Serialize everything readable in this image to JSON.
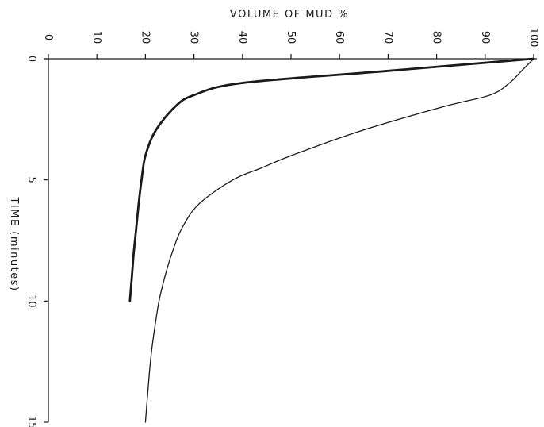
{
  "chart_data": {
    "type": "line",
    "title": "",
    "ylabel": "VOLUME OF MUD %",
    "xlabel": "TIME (minutes)",
    "xlim": [
      0,
      15
    ],
    "ylim": [
      0,
      100
    ],
    "x_ticks": [
      0,
      5,
      10,
      15
    ],
    "y_ticks": [
      0,
      10,
      20,
      30,
      40,
      50,
      60,
      70,
      80,
      90,
      100
    ],
    "orientation": "rotated-90-clockwise",
    "grid": false,
    "legend": "none",
    "series": [
      {
        "x": [
          0,
          0.5,
          1.0,
          1.5,
          2.0,
          3.0,
          4.0,
          5.0,
          6.0,
          7.0,
          8.0,
          9.0,
          10.0
        ],
        "values": [
          100,
          70,
          40,
          30,
          26,
          22,
          20,
          19.2,
          18.6,
          18.1,
          17.6,
          17.2,
          16.8
        ],
        "color": "#1a1a1a",
        "weight": "heavy"
      },
      {
        "x": [
          0,
          0.5,
          1.0,
          1.5,
          2.0,
          3.0,
          4.0,
          4.5,
          5.0,
          6.0,
          7.0,
          8.0,
          9.0,
          10.0,
          11.0,
          12.0,
          13.0,
          14.0,
          15.0
        ],
        "values": [
          100,
          97.5,
          95,
          91,
          81,
          64,
          50,
          44,
          38,
          31,
          27.5,
          25.5,
          24,
          22.8,
          22,
          21.3,
          20.8,
          20.4,
          20
        ],
        "color": "#1a1a1a",
        "weight": "light"
      }
    ]
  }
}
